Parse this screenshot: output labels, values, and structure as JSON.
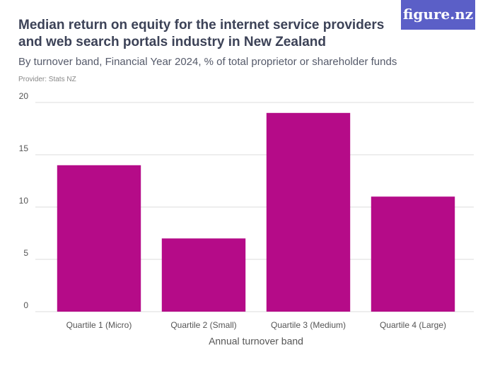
{
  "logo": "figure.nz",
  "chart_data": {
    "type": "bar",
    "title": "Median return on equity for the internet service providers and web search portals industry in New Zealand",
    "subtitle": "By turnover band, Financial Year 2024, % of total proprietor or shareholder funds",
    "provider": "Provider: Stats NZ",
    "x_label": "Annual turnover band",
    "categories": [
      "Quartile 1 (Micro)",
      "Quartile 2 (Small)",
      "Quartile 3 (Medium)",
      "Quartile 4 (Large)"
    ],
    "values": [
      14,
      7,
      19,
      11
    ],
    "color": "#b50b88",
    "ylim": [
      0,
      20
    ],
    "yticks": [
      0,
      5,
      10,
      15,
      20
    ],
    "grid": true
  }
}
